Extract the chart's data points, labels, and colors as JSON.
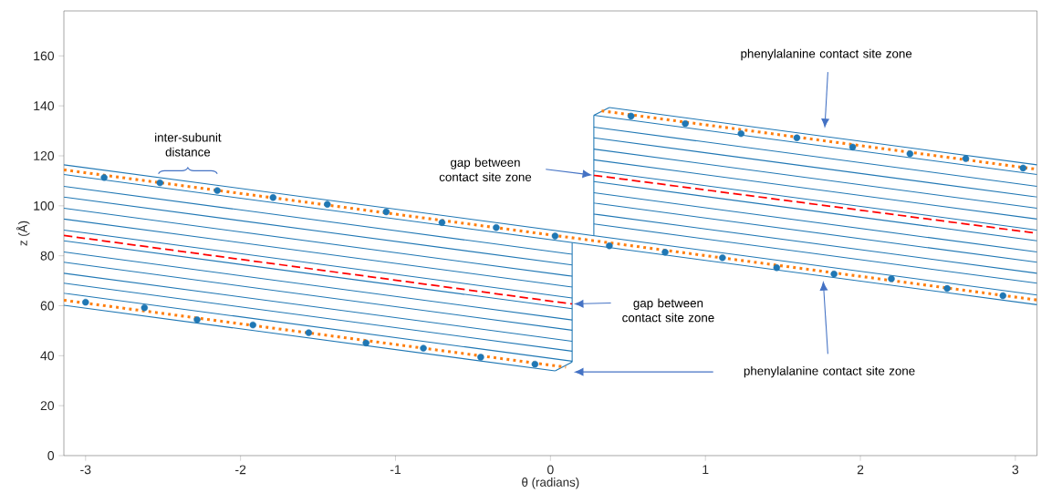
{
  "chart_data": {
    "type": "line",
    "xlabel": "θ (radians)",
    "ylabel": "z (Å)",
    "xlim": [
      -3.14,
      3.14
    ],
    "ylim": [
      0,
      178
    ],
    "xticks": [
      -3,
      -2,
      -1,
      0,
      1,
      2,
      3
    ],
    "yticks": [
      0,
      20,
      40,
      60,
      80,
      100,
      120,
      140,
      160
    ],
    "marker": "none",
    "grid": false,
    "series": [
      {
        "color": "#1f77b4",
        "x": [
          -3.14,
          3.14
        ],
        "values": [
          116.4,
          64.3
        ]
      },
      {
        "color": "#1f77b4",
        "x": [
          -3.14,
          3.14
        ],
        "values": [
          112.5,
          60.4
        ]
      },
      {
        "color": "#1f77b4",
        "x": [
          -3.14,
          0.14
        ],
        "values": [
          107.8,
          80.6
        ]
      },
      {
        "color": "#1f77b4",
        "x": [
          -3.14,
          0.14
        ],
        "values": [
          103.5,
          76.3
        ]
      },
      {
        "color": "#1f77b4",
        "x": [
          -3.14,
          0.14
        ],
        "values": [
          99,
          71.8
        ]
      },
      {
        "color": "#1f77b4",
        "x": [
          -3.14,
          0.14
        ],
        "values": [
          94.7,
          67.5
        ]
      },
      {
        "color": "#1f77b4",
        "x": [
          -3.14,
          0.14
        ],
        "values": [
          90.3,
          63.1
        ]
      },
      {
        "color": "#1f77b4",
        "x": [
          -3.14,
          0.14
        ],
        "values": [
          86,
          58.8
        ]
      },
      {
        "color": "#1f77b4",
        "x": [
          -3.14,
          0.14
        ],
        "values": [
          81.5,
          54.3
        ]
      },
      {
        "color": "#1f77b4",
        "x": [
          -3.14,
          0.14
        ],
        "values": [
          77.4,
          50.2
        ]
      },
      {
        "color": "#1f77b4",
        "x": [
          -3.14,
          0.14
        ],
        "values": [
          73,
          45.8
        ]
      },
      {
        "color": "#1f77b4",
        "x": [
          -3.14,
          0.14
        ],
        "values": [
          69,
          41.8
        ]
      },
      {
        "color": "#1f77b4",
        "x": [
          -3.14,
          0.14
        ],
        "values": [
          65,
          37.8
        ]
      },
      {
        "color": "#1f77b4",
        "x": [
          -3.14,
          0.03
        ],
        "values": [
          60.2,
          33.9
        ]
      },
      {
        "color": "#1f77b4",
        "x": [
          0.03,
          0.14
        ],
        "values": [
          33.9,
          37.5
        ]
      },
      {
        "color": "#1f77b4",
        "x": [
          0.14,
          0.14
        ],
        "values": [
          37.5,
          85.3
        ]
      },
      {
        "color": "#1f77b4",
        "x": [
          0.28,
          0.28
        ],
        "values": [
          88.0,
          136.2
        ]
      },
      {
        "color": "#1f77b4",
        "x": [
          0.28,
          0.38
        ],
        "values": [
          136.2,
          139.3
        ]
      },
      {
        "color": "#1f77b4",
        "x": [
          0.38,
          3.14
        ],
        "values": [
          139.3,
          116.4
        ]
      },
      {
        "color": "#1f77b4",
        "x": [
          0.28,
          3.14
        ],
        "values": [
          136.2,
          112.5
        ]
      },
      {
        "color": "#1f77b4",
        "x": [
          0.28,
          3.14
        ],
        "values": [
          131.5,
          107.8
        ]
      },
      {
        "color": "#1f77b4",
        "x": [
          0.28,
          3.14
        ],
        "values": [
          127.2,
          103.5
        ]
      },
      {
        "color": "#1f77b4",
        "x": [
          0.28,
          3.14
        ],
        "values": [
          122.7,
          99
        ]
      },
      {
        "color": "#1f77b4",
        "x": [
          0.28,
          3.14
        ],
        "values": [
          118.4,
          94.7
        ]
      },
      {
        "color": "#1f77b4",
        "x": [
          0.28,
          3.14
        ],
        "values": [
          114,
          90.3
        ]
      },
      {
        "color": "#1f77b4",
        "x": [
          0.28,
          3.14
        ],
        "values": [
          109.7,
          86
        ]
      },
      {
        "color": "#1f77b4",
        "x": [
          0.28,
          3.14
        ],
        "values": [
          105.2,
          81.5
        ]
      },
      {
        "color": "#1f77b4",
        "x": [
          0.28,
          3.14
        ],
        "values": [
          101.1,
          77.4
        ]
      },
      {
        "color": "#1f77b4",
        "x": [
          0.28,
          3.14
        ],
        "values": [
          96.7,
          73
        ]
      },
      {
        "color": "#1f77b4",
        "x": [
          0.28,
          3.14
        ],
        "values": [
          92.7,
          69
        ]
      },
      {
        "color": "#ff7f0e",
        "line_style": "dotted",
        "x": [
          -3.14,
          3.14
        ],
        "values": [
          114.4,
          62.3
        ]
      },
      {
        "color": "#ff7f0e",
        "line_style": "dotted",
        "x": [
          -3.14,
          0.1
        ],
        "values": [
          62.2,
          35.4
        ]
      },
      {
        "color": "#ff7f0e",
        "line_style": "dotted",
        "x": [
          0.33,
          3.14
        ],
        "values": [
          138,
          114.6
        ]
      },
      {
        "color": "#ff0000",
        "line_style": "dashed",
        "x": [
          -3.14,
          0.14
        ],
        "values": [
          88.1,
          60.7
        ]
      },
      {
        "color": "#ff0000",
        "line_style": "dashed",
        "x": [
          0.28,
          3.14
        ],
        "values": [
          112.2,
          89
        ]
      },
      {
        "type": "scatter",
        "color": "#1f77b4",
        "marker": "circle",
        "x": [
          -2.88,
          -2.52,
          -2.15,
          -1.79,
          -1.44,
          -1.06,
          -0.7,
          -0.35,
          0.03,
          0.38,
          0.74,
          1.11,
          1.46,
          1.83,
          2.2,
          2.56,
          2.92,
          -3.0,
          -2.62,
          -2.28,
          -1.92,
          -1.56,
          -1.19,
          -0.82,
          -0.45,
          -0.1,
          0.52,
          0.87,
          1.23,
          1.59,
          1.95,
          2.32,
          2.68,
          3.05
        ],
        "values": [
          111.3,
          109.2,
          106.1,
          103.3,
          100.6,
          97.6,
          93.3,
          91.3,
          87.9,
          84,
          81.4,
          79.2,
          75.2,
          72.7,
          70.8,
          66.9,
          64,
          61.4,
          59.2,
          54.4,
          52.3,
          49.2,
          45.1,
          43,
          39.4,
          36.6,
          135.9,
          132.9,
          128.9,
          127.2,
          123.5,
          120.8,
          118.9,
          115.1
        ]
      }
    ],
    "annotations": [
      "inter-subunit distance",
      "gap between contact site zone",
      "phenylalanine contact site zone",
      "gap between contact site zone",
      "phenylalanine contact site zone"
    ]
  }
}
